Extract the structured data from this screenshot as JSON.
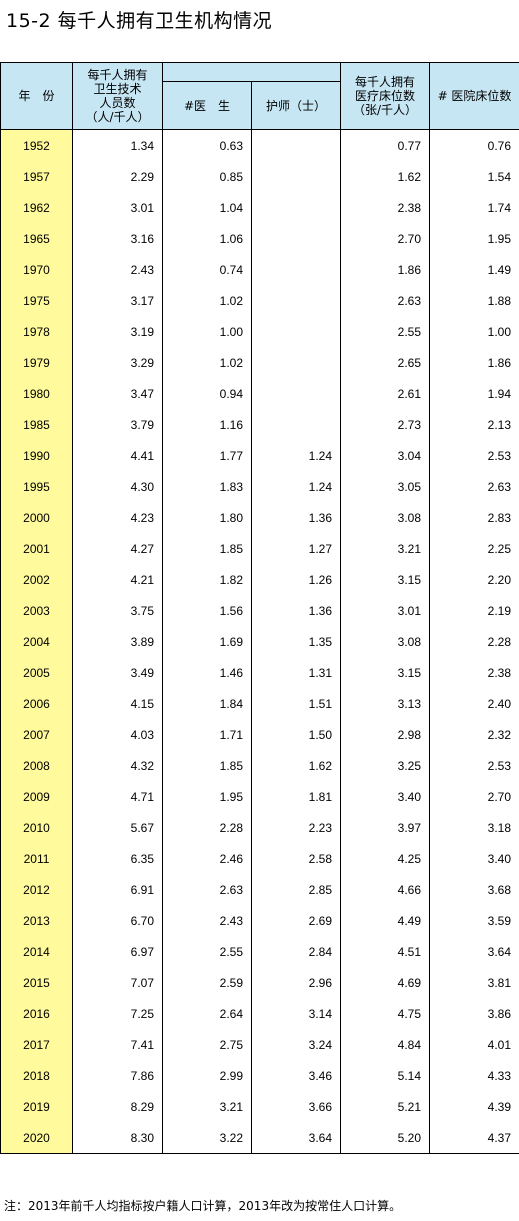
{
  "title": "15-2 每千人拥有卫生机构情况",
  "headers": {
    "year": "年　份",
    "tech_staff": "每千人拥有\n卫生技术\n人员数\n（人/千人）",
    "doctor": "#医　生",
    "nurse": "护师（士）",
    "beds": "每千人拥有\n医疗床位数\n（张/千人）",
    "hospital_beds": "# 医院床位数"
  },
  "rows": [
    {
      "year": "1952",
      "tech": "1.34",
      "doctor": "0.63",
      "nurse": "",
      "beds": "0.77",
      "hosp": "0.76"
    },
    {
      "year": "1957",
      "tech": "2.29",
      "doctor": "0.85",
      "nurse": "",
      "beds": "1.62",
      "hosp": "1.54"
    },
    {
      "year": "1962",
      "tech": "3.01",
      "doctor": "1.04",
      "nurse": "",
      "beds": "2.38",
      "hosp": "1.74"
    },
    {
      "year": "1965",
      "tech": "3.16",
      "doctor": "1.06",
      "nurse": "",
      "beds": "2.70",
      "hosp": "1.95"
    },
    {
      "year": "1970",
      "tech": "2.43",
      "doctor": "0.74",
      "nurse": "",
      "beds": "1.86",
      "hosp": "1.49"
    },
    {
      "year": "1975",
      "tech": "3.17",
      "doctor": "1.02",
      "nurse": "",
      "beds": "2.63",
      "hosp": "1.88"
    },
    {
      "year": "1978",
      "tech": "3.19",
      "doctor": "1.00",
      "nurse": "",
      "beds": "2.55",
      "hosp": "1.00"
    },
    {
      "year": "1979",
      "tech": "3.29",
      "doctor": "1.02",
      "nurse": "",
      "beds": "2.65",
      "hosp": "1.86"
    },
    {
      "year": "1980",
      "tech": "3.47",
      "doctor": "0.94",
      "nurse": "",
      "beds": "2.61",
      "hosp": "1.94"
    },
    {
      "year": "1985",
      "tech": "3.79",
      "doctor": "1.16",
      "nurse": "",
      "beds": "2.73",
      "hosp": "2.13"
    },
    {
      "year": "1990",
      "tech": "4.41",
      "doctor": "1.77",
      "nurse": "1.24",
      "beds": "3.04",
      "hosp": "2.53"
    },
    {
      "year": "1995",
      "tech": "4.30",
      "doctor": "1.83",
      "nurse": "1.24",
      "beds": "3.05",
      "hosp": "2.63"
    },
    {
      "year": "2000",
      "tech": "4.23",
      "doctor": "1.80",
      "nurse": "1.36",
      "beds": "3.08",
      "hosp": "2.83"
    },
    {
      "year": "2001",
      "tech": "4.27",
      "doctor": "1.85",
      "nurse": "1.27",
      "beds": "3.21",
      "hosp": "2.25"
    },
    {
      "year": "2002",
      "tech": "4.21",
      "doctor": "1.82",
      "nurse": "1.26",
      "beds": "3.15",
      "hosp": "2.20"
    },
    {
      "year": "2003",
      "tech": "3.75",
      "doctor": "1.56",
      "nurse": "1.36",
      "beds": "3.01",
      "hosp": "2.19"
    },
    {
      "year": "2004",
      "tech": "3.89",
      "doctor": "1.69",
      "nurse": "1.35",
      "beds": "3.08",
      "hosp": "2.28"
    },
    {
      "year": "2005",
      "tech": "3.49",
      "doctor": "1.46",
      "nurse": "1.31",
      "beds": "3.15",
      "hosp": "2.38"
    },
    {
      "year": "2006",
      "tech": "4.15",
      "doctor": "1.84",
      "nurse": "1.51",
      "beds": "3.13",
      "hosp": "2.40"
    },
    {
      "year": "2007",
      "tech": "4.03",
      "doctor": "1.71",
      "nurse": "1.50",
      "beds": "2.98",
      "hosp": "2.32"
    },
    {
      "year": "2008",
      "tech": "4.32",
      "doctor": "1.85",
      "nurse": "1.62",
      "beds": "3.25",
      "hosp": "2.53"
    },
    {
      "year": "2009",
      "tech": "4.71",
      "doctor": "1.95",
      "nurse": "1.81",
      "beds": "3.40",
      "hosp": "2.70"
    },
    {
      "year": "2010",
      "tech": "5.67",
      "doctor": "2.28",
      "nurse": "2.23",
      "beds": "3.97",
      "hosp": "3.18"
    },
    {
      "year": "2011",
      "tech": "6.35",
      "doctor": "2.46",
      "nurse": "2.58",
      "beds": "4.25",
      "hosp": "3.40"
    },
    {
      "year": "2012",
      "tech": "6.91",
      "doctor": "2.63",
      "nurse": "2.85",
      "beds": "4.66",
      "hosp": "3.68"
    },
    {
      "year": "2013",
      "tech": "6.70",
      "doctor": "2.43",
      "nurse": "2.69",
      "beds": "4.49",
      "hosp": "3.59"
    },
    {
      "year": "2014",
      "tech": "6.97",
      "doctor": "2.55",
      "nurse": "2.84",
      "beds": "4.51",
      "hosp": "3.64"
    },
    {
      "year": "2015",
      "tech": "7.07",
      "doctor": "2.59",
      "nurse": "2.96",
      "beds": "4.69",
      "hosp": "3.81"
    },
    {
      "year": "2016",
      "tech": "7.25",
      "doctor": "2.64",
      "nurse": "3.14",
      "beds": "4.75",
      "hosp": "3.86"
    },
    {
      "year": "2017",
      "tech": "7.41",
      "doctor": "2.75",
      "nurse": "3.24",
      "beds": "4.84",
      "hosp": "4.01"
    },
    {
      "year": "2018",
      "tech": "7.86",
      "doctor": "2.99",
      "nurse": "3.46",
      "beds": "5.14",
      "hosp": "4.33"
    },
    {
      "year": "2019",
      "tech": "8.29",
      "doctor": "3.21",
      "nurse": "3.66",
      "beds": "5.21",
      "hosp": "4.39"
    },
    {
      "year": "2020",
      "tech": "8.30",
      "doctor": "3.22",
      "nurse": "3.64",
      "beds": "5.20",
      "hosp": "4.37"
    }
  ],
  "note": "注：2013年前千人均指标按户籍人口计算，2013年改为按常住人口计算。",
  "colors": {
    "header_bg": "#c7e6f4",
    "year_bg": "#fffa9c"
  }
}
